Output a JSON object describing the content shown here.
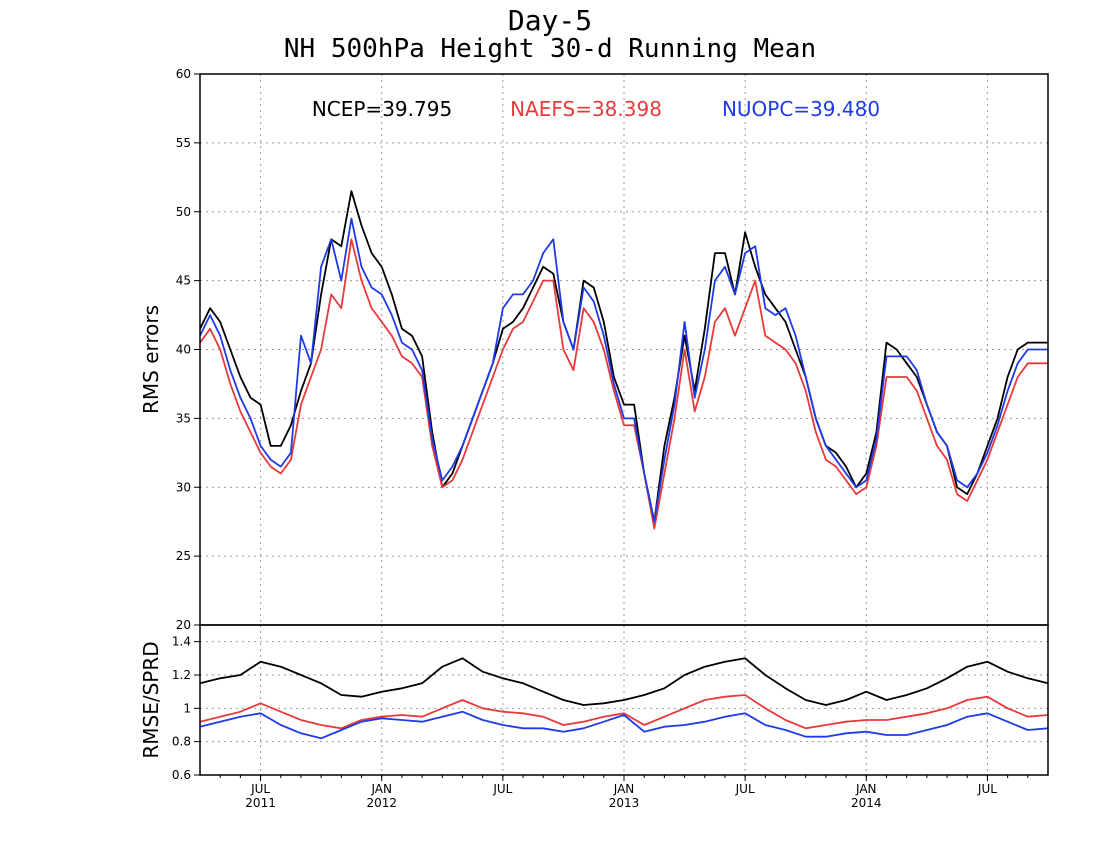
{
  "title_line1": "Day-5",
  "title_line2": "NH 500hPa Height 30-d Running Mean",
  "colors": {
    "NCEP": "#000000",
    "NAEFS": "#e83a3a",
    "NUOPC": "#1f3be8",
    "grid": "#9a9a9a"
  },
  "chart_data": [
    {
      "type": "line",
      "ylabel": "RMS errors",
      "ylim": [
        20,
        60
      ],
      "yticks": [
        "20",
        "25",
        "30",
        "35",
        "40",
        "45",
        "50",
        "55",
        "60"
      ],
      "grid": true,
      "legend_placement": "top",
      "x_unit": "month index from Apr 2011",
      "series": [
        {
          "name": "NCEP",
          "annotation": "NCEP=39.795",
          "color": "#000000",
          "x": [
            0,
            0.5,
            1,
            1.5,
            2,
            2.5,
            3,
            3.5,
            4,
            4.5,
            5,
            5.5,
            6,
            6.5,
            7,
            7.5,
            8,
            8.5,
            9,
            9.5,
            10,
            10.5,
            11,
            11.5,
            12,
            12.5,
            13,
            13.5,
            14,
            14.5,
            15,
            15.5,
            16,
            16.5,
            17,
            17.5,
            18,
            18.5,
            19,
            19.5,
            20,
            20.5,
            21,
            21.5,
            22,
            22.5,
            23,
            23.5,
            24,
            24.5,
            25,
            25.5,
            26,
            26.5,
            27,
            27.5,
            28,
            28.5,
            29,
            29.5,
            30,
            30.5,
            31,
            31.5,
            32,
            32.5,
            33,
            33.5,
            34,
            34.5,
            35,
            35.5,
            36,
            36.5,
            37,
            37.5,
            38,
            38.5,
            39,
            39.5,
            40,
            40.5,
            41,
            41.5,
            42
          ],
          "y": [
            41.5,
            43,
            42,
            40,
            38,
            36.5,
            36,
            33,
            33,
            34.5,
            37,
            39,
            44,
            48,
            47.5,
            51.5,
            49,
            47,
            46,
            44,
            41.5,
            41,
            39.5,
            34,
            30,
            31,
            33,
            35,
            37,
            39,
            41.5,
            42,
            43,
            44.5,
            46,
            45.5,
            42,
            40,
            45,
            44.5,
            42,
            38,
            36,
            36,
            31,
            27.5,
            33,
            36.5,
            41,
            37,
            41.5,
            47,
            47,
            44,
            48.5,
            46,
            44,
            43,
            42,
            40,
            38,
            35,
            33,
            32.5,
            31.5,
            30,
            31,
            34,
            40.5,
            40,
            39,
            38,
            36,
            34,
            33,
            30,
            29.5,
            31,
            33,
            35,
            38,
            40,
            40.5,
            40.5,
            40.5
          ]
        },
        {
          "name": "NAEFS",
          "annotation": "NAEFS=38.398",
          "color": "#e83a3a",
          "x": [
            0,
            0.5,
            1,
            1.5,
            2,
            2.5,
            3,
            3.5,
            4,
            4.5,
            5,
            5.5,
            6,
            6.5,
            7,
            7.5,
            8,
            8.5,
            9,
            9.5,
            10,
            10.5,
            11,
            11.5,
            12,
            12.5,
            13,
            13.5,
            14,
            14.5,
            15,
            15.5,
            16,
            16.5,
            17,
            17.5,
            18,
            18.5,
            19,
            19.5,
            20,
            20.5,
            21,
            21.5,
            22,
            22.5,
            23,
            23.5,
            24,
            24.5,
            25,
            25.5,
            26,
            26.5,
            27,
            27.5,
            28,
            28.5,
            29,
            29.5,
            30,
            30.5,
            31,
            31.5,
            32,
            32.5,
            33,
            33.5,
            34,
            34.5,
            35,
            35.5,
            36,
            36.5,
            37,
            37.5,
            38,
            38.5,
            39,
            39.5,
            40,
            40.5,
            41,
            41.5,
            42
          ],
          "y": [
            40.5,
            41.5,
            40,
            37.5,
            35.5,
            34,
            32.5,
            31.5,
            31,
            32,
            36,
            38,
            40,
            44,
            43,
            48,
            45,
            43,
            42,
            41,
            39.5,
            39,
            38,
            33,
            30,
            30.5,
            32,
            34,
            36,
            38,
            40,
            41.5,
            42,
            43.5,
            45,
            45,
            40,
            38.5,
            43,
            42,
            40,
            37,
            34.5,
            34.5,
            31,
            27,
            31,
            35,
            40,
            35.5,
            38,
            42,
            43,
            41,
            43,
            45,
            41,
            40.5,
            40,
            39,
            37,
            34,
            32,
            31.5,
            30.5,
            29.5,
            30,
            33,
            38,
            38,
            38,
            37,
            35,
            33,
            32,
            29.5,
            29,
            30.5,
            32,
            34,
            36,
            38,
            39,
            39,
            39
          ]
        },
        {
          "name": "NUOPC",
          "annotation": "NUOPC=39.480",
          "color": "#1f3be8",
          "x": [
            0,
            0.5,
            1,
            1.5,
            2,
            2.5,
            3,
            3.5,
            4,
            4.5,
            5,
            5.5,
            6,
            6.5,
            7,
            7.5,
            8,
            8.5,
            9,
            9.5,
            10,
            10.5,
            11,
            11.5,
            12,
            12.5,
            13,
            13.5,
            14,
            14.5,
            15,
            15.5,
            16,
            16.5,
            17,
            17.5,
            18,
            18.5,
            19,
            19.5,
            20,
            20.5,
            21,
            21.5,
            22,
            22.5,
            23,
            23.5,
            24,
            24.5,
            25,
            25.5,
            26,
            26.5,
            27,
            27.5,
            28,
            28.5,
            29,
            29.5,
            30,
            30.5,
            31,
            31.5,
            32,
            32.5,
            33,
            33.5,
            34,
            34.5,
            35,
            35.5,
            36,
            36.5,
            37,
            37.5,
            38,
            38.5,
            39,
            39.5,
            40,
            40.5,
            41,
            41.5,
            42
          ],
          "y": [
            41,
            42.5,
            41,
            38.5,
            36.5,
            35,
            33,
            32,
            31.5,
            32.5,
            41,
            39,
            46,
            48,
            45,
            49.5,
            46,
            44.5,
            44,
            42.5,
            40.5,
            40,
            38.5,
            33.5,
            30.5,
            31.5,
            33,
            35,
            37,
            39,
            43,
            44,
            44,
            45,
            47,
            48,
            42,
            40,
            44.5,
            43.5,
            41,
            37.5,
            35,
            35,
            31,
            27.5,
            32,
            36,
            42,
            36.5,
            40,
            45,
            46,
            44,
            47,
            47.5,
            43,
            42.5,
            43,
            41,
            38,
            35,
            33,
            32,
            31,
            30,
            30.5,
            33.5,
            39.5,
            39.5,
            39.5,
            38.5,
            36,
            34,
            33,
            30.5,
            30,
            31,
            32.5,
            34.5,
            37,
            39,
            40,
            40,
            40
          ]
        }
      ]
    },
    {
      "type": "line",
      "ylabel": "RMSE/SPRD",
      "ylim": [
        0.6,
        1.5
      ],
      "yticks": [
        "0.6",
        "0.8",
        "1",
        "1.2",
        "1.4"
      ],
      "grid": true,
      "x_unit": "month index from Apr 2011",
      "xticks": [
        {
          "x": 3,
          "label": "JUL",
          "year": "2011"
        },
        {
          "x": 9,
          "label": "JAN",
          "year": "2012"
        },
        {
          "x": 15,
          "label": "JUL",
          "year": ""
        },
        {
          "x": 21,
          "label": "JAN",
          "year": "2013"
        },
        {
          "x": 27,
          "label": "JUL",
          "year": ""
        },
        {
          "x": 33,
          "label": "JAN",
          "year": "2014"
        },
        {
          "x": 39,
          "label": "JUL",
          "year": ""
        }
      ],
      "series": [
        {
          "name": "NCEP",
          "color": "#000000",
          "x": [
            0,
            1,
            2,
            3,
            4,
            5,
            6,
            7,
            8,
            9,
            10,
            11,
            12,
            13,
            14,
            15,
            16,
            17,
            18,
            19,
            20,
            21,
            22,
            23,
            24,
            25,
            26,
            27,
            28,
            29,
            30,
            31,
            32,
            33,
            34,
            35,
            36,
            37,
            38,
            39,
            40,
            41,
            42
          ],
          "y": [
            1.15,
            1.18,
            1.2,
            1.28,
            1.25,
            1.2,
            1.15,
            1.08,
            1.07,
            1.1,
            1.12,
            1.15,
            1.25,
            1.3,
            1.22,
            1.18,
            1.15,
            1.1,
            1.05,
            1.02,
            1.03,
            1.05,
            1.08,
            1.12,
            1.2,
            1.25,
            1.28,
            1.3,
            1.2,
            1.12,
            1.05,
            1.02,
            1.05,
            1.1,
            1.05,
            1.08,
            1.12,
            1.18,
            1.25,
            1.28,
            1.22,
            1.18,
            1.15
          ]
        },
        {
          "name": "NAEFS",
          "color": "#e83a3a",
          "x": [
            0,
            1,
            2,
            3,
            4,
            5,
            6,
            7,
            8,
            9,
            10,
            11,
            12,
            13,
            14,
            15,
            16,
            17,
            18,
            19,
            20,
            21,
            22,
            23,
            24,
            25,
            26,
            27,
            28,
            29,
            30,
            31,
            32,
            33,
            34,
            35,
            36,
            37,
            38,
            39,
            40,
            41,
            42
          ],
          "y": [
            0.92,
            0.95,
            0.98,
            1.03,
            0.98,
            0.93,
            0.9,
            0.88,
            0.93,
            0.95,
            0.96,
            0.95,
            1.0,
            1.05,
            1.0,
            0.98,
            0.97,
            0.95,
            0.9,
            0.92,
            0.95,
            0.97,
            0.9,
            0.95,
            1.0,
            1.05,
            1.07,
            1.08,
            1.0,
            0.93,
            0.88,
            0.9,
            0.92,
            0.93,
            0.93,
            0.95,
            0.97,
            1.0,
            1.05,
            1.07,
            1.0,
            0.95,
            0.96
          ]
        },
        {
          "name": "NUOPC",
          "color": "#1f3be8",
          "x": [
            0,
            1,
            2,
            3,
            4,
            5,
            6,
            7,
            8,
            9,
            10,
            11,
            12,
            13,
            14,
            15,
            16,
            17,
            18,
            19,
            20,
            21,
            22,
            23,
            24,
            25,
            26,
            27,
            28,
            29,
            30,
            31,
            32,
            33,
            34,
            35,
            36,
            37,
            38,
            39,
            40,
            41,
            42
          ],
          "y": [
            0.89,
            0.92,
            0.95,
            0.97,
            0.9,
            0.85,
            0.82,
            0.87,
            0.92,
            0.94,
            0.93,
            0.92,
            0.95,
            0.98,
            0.93,
            0.9,
            0.88,
            0.88,
            0.86,
            0.88,
            0.92,
            0.96,
            0.86,
            0.89,
            0.9,
            0.92,
            0.95,
            0.97,
            0.9,
            0.87,
            0.83,
            0.83,
            0.85,
            0.86,
            0.84,
            0.84,
            0.87,
            0.9,
            0.95,
            0.97,
            0.92,
            0.87,
            0.88
          ]
        }
      ]
    }
  ]
}
